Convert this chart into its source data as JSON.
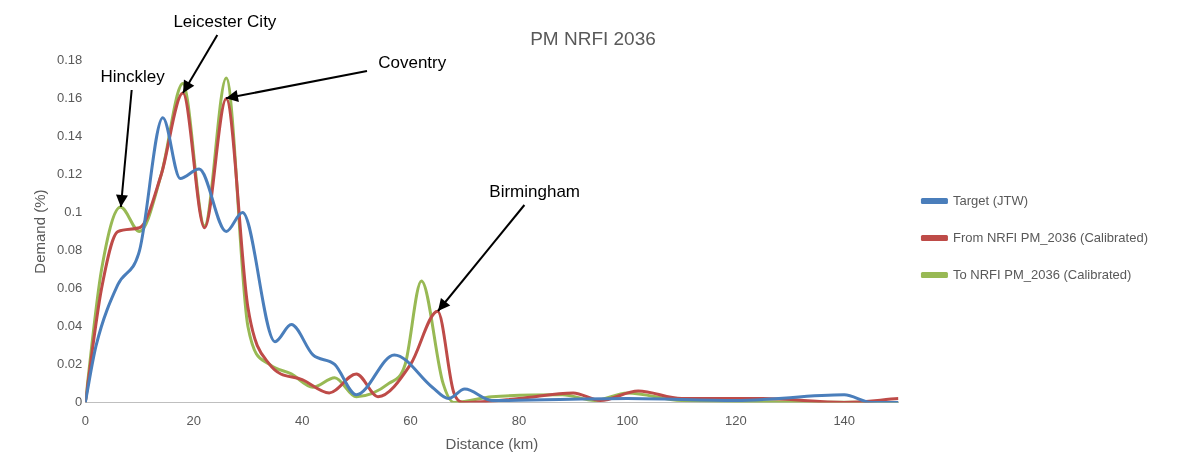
{
  "chart_data": {
    "type": "line",
    "title": "PM NRFI 2036",
    "xlabel": "Distance (km)",
    "ylabel": "Demand (%)",
    "xlim": [
      0,
      150
    ],
    "xticks": [
      0,
      20,
      40,
      60,
      80,
      100,
      120,
      140
    ],
    "ylim": [
      0,
      0.18
    ],
    "yticks": [
      0,
      0.02,
      0.04,
      0.06,
      0.08,
      0.1,
      0.12,
      0.14,
      0.16,
      0.18
    ],
    "grid": false,
    "legend": "right",
    "marker": "none",
    "line_style": "solid",
    "series": [
      {
        "name": "Target (JTW)",
        "color": "#4a7ebb",
        "x": [
          0,
          2,
          6,
          10,
          14.3,
          17.5,
          21,
          26,
          29,
          35,
          38,
          42,
          46,
          50,
          57,
          64,
          67,
          70,
          75,
          100,
          120,
          140,
          145,
          150
        ],
        "values": [
          0,
          0.03,
          0.062,
          0.08,
          0.15,
          0.118,
          0.123,
          0.09,
          0.1,
          0.032,
          0.041,
          0.025,
          0.02,
          0.004,
          0.025,
          0.008,
          0.002,
          0.007,
          0.001,
          0.002,
          0.001,
          0.004,
          0,
          0
        ]
      },
      {
        "name": "From NRFI PM_2036 (Calibrated)",
        "color": "#be4b48",
        "x": [
          0,
          3,
          6,
          10,
          14,
          18,
          22,
          26,
          30,
          34,
          40,
          45,
          50,
          54,
          60,
          65,
          68,
          70,
          80,
          90,
          95,
          102,
          110,
          125,
          140,
          150
        ],
        "values": [
          0,
          0.06,
          0.09,
          0.092,
          0.12,
          0.163,
          0.092,
          0.16,
          0.05,
          0.02,
          0.012,
          0.005,
          0.015,
          0.003,
          0.02,
          0.048,
          0.005,
          0,
          0.002,
          0.005,
          0.001,
          0.006,
          0.002,
          0.002,
          0,
          0.002
        ]
      },
      {
        "name": "To NRFI PM_2036 (Calibrated)",
        "color": "#98b954",
        "x": [
          0,
          3,
          6.5,
          10,
          14,
          18,
          22,
          26,
          30,
          34,
          38,
          42,
          46,
          50,
          56,
          59,
          62,
          66,
          68,
          75,
          88,
          94,
          100,
          110,
          150
        ],
        "values": [
          0,
          0.07,
          0.103,
          0.09,
          0.12,
          0.168,
          0.093,
          0.171,
          0.04,
          0.02,
          0.015,
          0.008,
          0.013,
          0.003,
          0.01,
          0.02,
          0.064,
          0.01,
          0,
          0.003,
          0.004,
          0.001,
          0.005,
          0.001,
          0
        ]
      }
    ],
    "annotations": [
      {
        "text": "Hinckley",
        "x": 6.5,
        "y": 0.103
      },
      {
        "text": "Leicester City",
        "x": 18,
        "y": 0.163
      },
      {
        "text": "Coventry",
        "x": 26,
        "y": 0.16
      },
      {
        "text": "Birmingham",
        "x": 65,
        "y": 0.048
      }
    ]
  }
}
